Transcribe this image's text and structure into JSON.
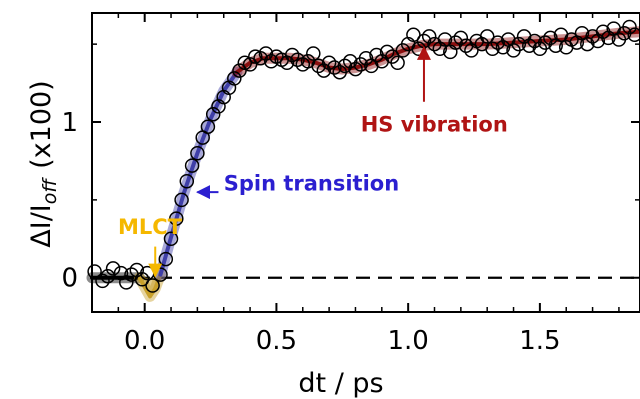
{
  "chart_data": {
    "type": "scatter",
    "xlabel": "dt / ps",
    "ylabel": {
      "base": "ΔI/I",
      "sub": "off",
      "suffix": "(x100)"
    },
    "xlim": [
      -0.2,
      1.88
    ],
    "ylim": [
      -0.22,
      1.7
    ],
    "x_ticks": [
      0.0,
      0.5,
      1.0,
      1.5
    ],
    "x_tick_labels": [
      "0.0",
      "0.5",
      "1.0",
      "1.5"
    ],
    "y_ticks": [
      0,
      1
    ],
    "y_tick_labels": [
      "0",
      "1"
    ],
    "reference_line": {
      "y": 0,
      "style": "dashed"
    },
    "points": {
      "x": [
        -0.19,
        -0.16,
        -0.14,
        -0.12,
        -0.09,
        -0.07,
        -0.05,
        -0.03,
        -0.01,
        0.01,
        0.03,
        0.06,
        0.08,
        0.1,
        0.12,
        0.14,
        0.16,
        0.18,
        0.2,
        0.22,
        0.24,
        0.26,
        0.28,
        0.3,
        0.32,
        0.34,
        0.36,
        0.38,
        0.4,
        0.42,
        0.44,
        0.46,
        0.48,
        0.5,
        0.52,
        0.54,
        0.56,
        0.58,
        0.6,
        0.62,
        0.64,
        0.66,
        0.68,
        0.7,
        0.72,
        0.74,
        0.76,
        0.78,
        0.8,
        0.82,
        0.84,
        0.86,
        0.88,
        0.9,
        0.92,
        0.94,
        0.96,
        0.98,
        1.0,
        1.02,
        1.04,
        1.06,
        1.08,
        1.1,
        1.12,
        1.14,
        1.16,
        1.18,
        1.2,
        1.22,
        1.24,
        1.26,
        1.28,
        1.3,
        1.32,
        1.34,
        1.36,
        1.38,
        1.4,
        1.42,
        1.44,
        1.46,
        1.48,
        1.5,
        1.52,
        1.54,
        1.56,
        1.58,
        1.6,
        1.62,
        1.64,
        1.66,
        1.68,
        1.7,
        1.72,
        1.74,
        1.76,
        1.78,
        1.8,
        1.82,
        1.84,
        1.86
      ],
      "y": [
        0.04,
        -0.02,
        0.01,
        0.06,
        0.03,
        -0.03,
        0.02,
        0.05,
        -0.01,
        0.03,
        -0.05,
        0.02,
        0.12,
        0.25,
        0.38,
        0.5,
        0.62,
        0.72,
        0.8,
        0.9,
        0.97,
        1.05,
        1.1,
        1.16,
        1.22,
        1.28,
        1.33,
        1.38,
        1.37,
        1.42,
        1.41,
        1.44,
        1.39,
        1.42,
        1.4,
        1.38,
        1.43,
        1.4,
        1.37,
        1.39,
        1.44,
        1.36,
        1.33,
        1.38,
        1.35,
        1.32,
        1.36,
        1.39,
        1.34,
        1.37,
        1.41,
        1.36,
        1.43,
        1.39,
        1.45,
        1.42,
        1.38,
        1.46,
        1.5,
        1.56,
        1.47,
        1.52,
        1.55,
        1.5,
        1.47,
        1.53,
        1.45,
        1.51,
        1.54,
        1.49,
        1.46,
        1.52,
        1.5,
        1.55,
        1.47,
        1.51,
        1.48,
        1.53,
        1.46,
        1.5,
        1.55,
        1.49,
        1.52,
        1.47,
        1.51,
        1.54,
        1.49,
        1.56,
        1.48,
        1.53,
        1.51,
        1.57,
        1.5,
        1.55,
        1.52,
        1.58,
        1.54,
        1.6,
        1.53,
        1.57,
        1.61,
        1.56
      ]
    },
    "series": [
      {
        "segment": "pre",
        "color": "#000000",
        "x": [
          -0.2,
          -0.15,
          -0.1,
          -0.05,
          -0.02
        ],
        "y": [
          0.0,
          0.0,
          0.0,
          0.0,
          0.0
        ]
      },
      {
        "segment": "MLCT",
        "color": "#C8A02A",
        "x": [
          -0.02,
          0.0,
          0.02,
          0.04,
          0.06
        ],
        "y": [
          0.0,
          -0.06,
          -0.12,
          -0.07,
          0.02
        ]
      },
      {
        "segment": "spin-transition",
        "color": "#3F3FA8",
        "x": [
          0.06,
          0.1,
          0.15,
          0.2,
          0.25,
          0.3,
          0.35
        ],
        "y": [
          0.02,
          0.26,
          0.55,
          0.8,
          1.02,
          1.2,
          1.32
        ]
      },
      {
        "segment": "HS-vibration",
        "color": "#8B0F0F",
        "x": [
          0.35,
          0.4,
          0.45,
          0.5,
          0.55,
          0.6,
          0.65,
          0.7,
          0.75,
          0.8,
          0.85,
          0.9,
          0.95,
          1.0,
          1.05,
          1.1,
          1.15,
          1.2,
          1.3,
          1.4,
          1.5,
          1.6,
          1.7,
          1.8,
          1.88
        ],
        "y": [
          1.32,
          1.38,
          1.41,
          1.41,
          1.41,
          1.4,
          1.38,
          1.35,
          1.34,
          1.35,
          1.37,
          1.4,
          1.44,
          1.47,
          1.49,
          1.5,
          1.5,
          1.5,
          1.5,
          1.51,
          1.52,
          1.53,
          1.55,
          1.57,
          1.58
        ]
      }
    ],
    "annotations": [
      {
        "text": "Spin transition",
        "color": "#2B1FD0",
        "x": 0.3,
        "y": 0.56,
        "arrow_to": [
          0.2,
          0.55
        ],
        "arrow_from": [
          0.28,
          0.55
        ]
      },
      {
        "text": "HS vibration",
        "color": "#B01414",
        "x": 0.82,
        "y": 0.94,
        "arrow_to": [
          1.06,
          1.48
        ],
        "arrow_from": [
          1.06,
          1.13
        ]
      },
      {
        "text": "MLCT",
        "color": "#F5B800",
        "x": 0.02,
        "y": 0.28,
        "arrow_to": [
          0.04,
          0.01
        ],
        "arrow_from": [
          0.04,
          0.2
        ]
      }
    ],
    "grid": false
  }
}
